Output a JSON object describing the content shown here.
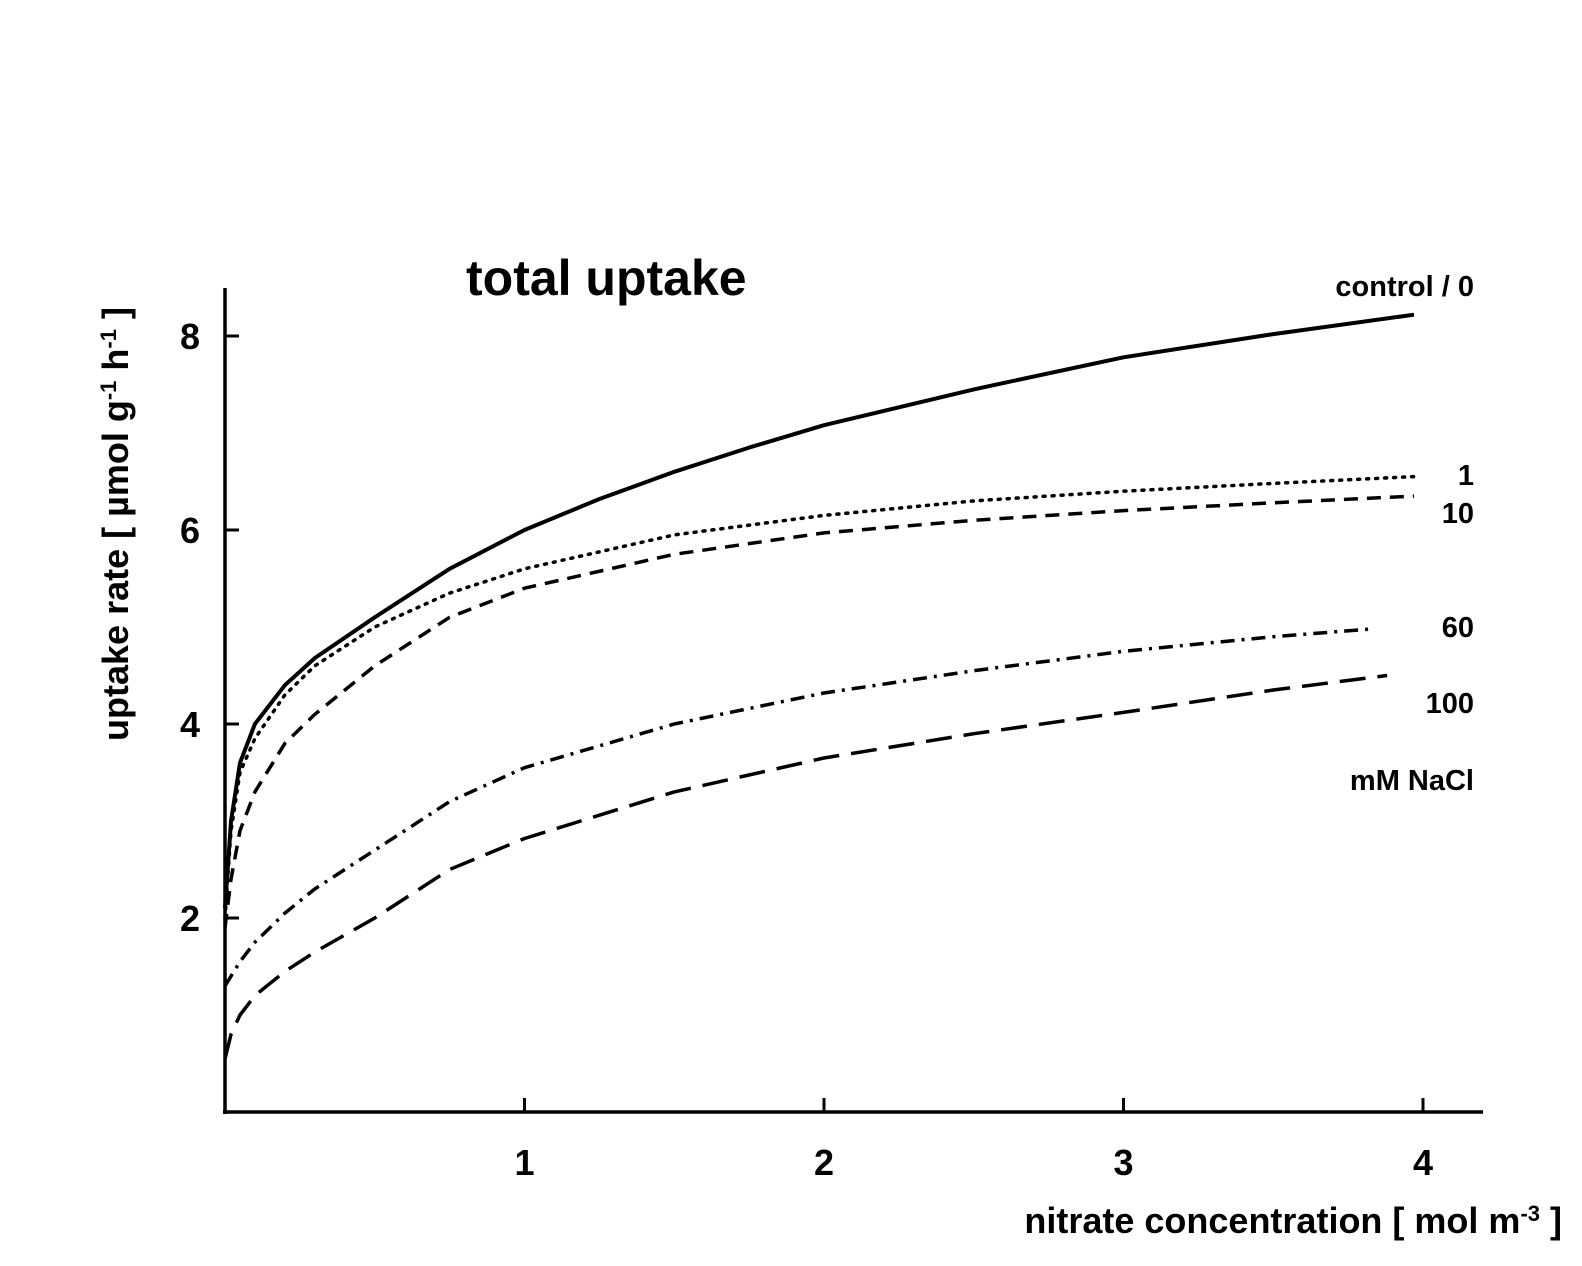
{
  "chart_data": {
    "type": "line",
    "title": "total uptake",
    "xlabel": "nitrate concentration [ mol m",
    "xlabel_sup": "-3",
    "xlabel_end": " ]",
    "ylabel": "uptake rate [ µmol g",
    "ylabel_sup1": "-1",
    "ylabel_mid": " h",
    "ylabel_sup2": "-1",
    "ylabel_end": " ]",
    "xlim": [
      0,
      4.2
    ],
    "ylim": [
      0,
      8.5
    ],
    "xticks": [
      1,
      2,
      3,
      4
    ],
    "yticks": [
      2,
      4,
      6,
      8
    ],
    "grid": false,
    "legend_title": "mM NaCl",
    "series": [
      {
        "name": "control / 0",
        "style": "solid",
        "x": [
          0.0,
          0.02,
          0.05,
          0.1,
          0.2,
          0.3,
          0.5,
          0.75,
          1.0,
          1.25,
          1.5,
          1.75,
          2.0,
          2.5,
          3.0,
          3.5,
          3.97
        ],
        "y": [
          2.1,
          3.0,
          3.6,
          4.0,
          4.4,
          4.68,
          5.1,
          5.6,
          6.0,
          6.32,
          6.6,
          6.85,
          7.08,
          7.45,
          7.78,
          8.02,
          8.22
        ]
      },
      {
        "name": "1",
        "style": "dotted",
        "x": [
          0.0,
          0.02,
          0.05,
          0.1,
          0.2,
          0.3,
          0.5,
          0.75,
          1.0,
          1.5,
          2.0,
          2.5,
          3.0,
          3.5,
          3.97
        ],
        "y": [
          2.0,
          2.9,
          3.5,
          3.85,
          4.3,
          4.6,
          5.0,
          5.35,
          5.6,
          5.95,
          6.15,
          6.3,
          6.4,
          6.48,
          6.55
        ]
      },
      {
        "name": "10",
        "style": "dashed",
        "x": [
          0.0,
          0.02,
          0.05,
          0.1,
          0.2,
          0.3,
          0.5,
          0.75,
          1.0,
          1.5,
          2.0,
          2.5,
          3.0,
          3.5,
          3.97
        ],
        "y": [
          1.9,
          2.4,
          2.9,
          3.3,
          3.8,
          4.1,
          4.6,
          5.1,
          5.4,
          5.75,
          5.97,
          6.1,
          6.2,
          6.28,
          6.35
        ]
      },
      {
        "name": "60",
        "style": "dashdot",
        "x": [
          0.0,
          0.05,
          0.1,
          0.2,
          0.3,
          0.5,
          0.75,
          1.0,
          1.5,
          2.0,
          2.5,
          3.0,
          3.5,
          3.83
        ],
        "y": [
          1.3,
          1.55,
          1.75,
          2.05,
          2.3,
          2.7,
          3.2,
          3.55,
          4.0,
          4.32,
          4.55,
          4.75,
          4.9,
          4.98
        ]
      },
      {
        "name": "100",
        "style": "longdash",
        "x": [
          0.0,
          0.02,
          0.05,
          0.1,
          0.2,
          0.3,
          0.5,
          0.75,
          1.0,
          1.5,
          2.0,
          2.5,
          3.0,
          3.5,
          3.88
        ],
        "y": [
          0.55,
          0.8,
          1.0,
          1.2,
          1.45,
          1.65,
          2.0,
          2.5,
          2.82,
          3.3,
          3.65,
          3.9,
          4.12,
          4.35,
          4.5
        ]
      }
    ]
  }
}
